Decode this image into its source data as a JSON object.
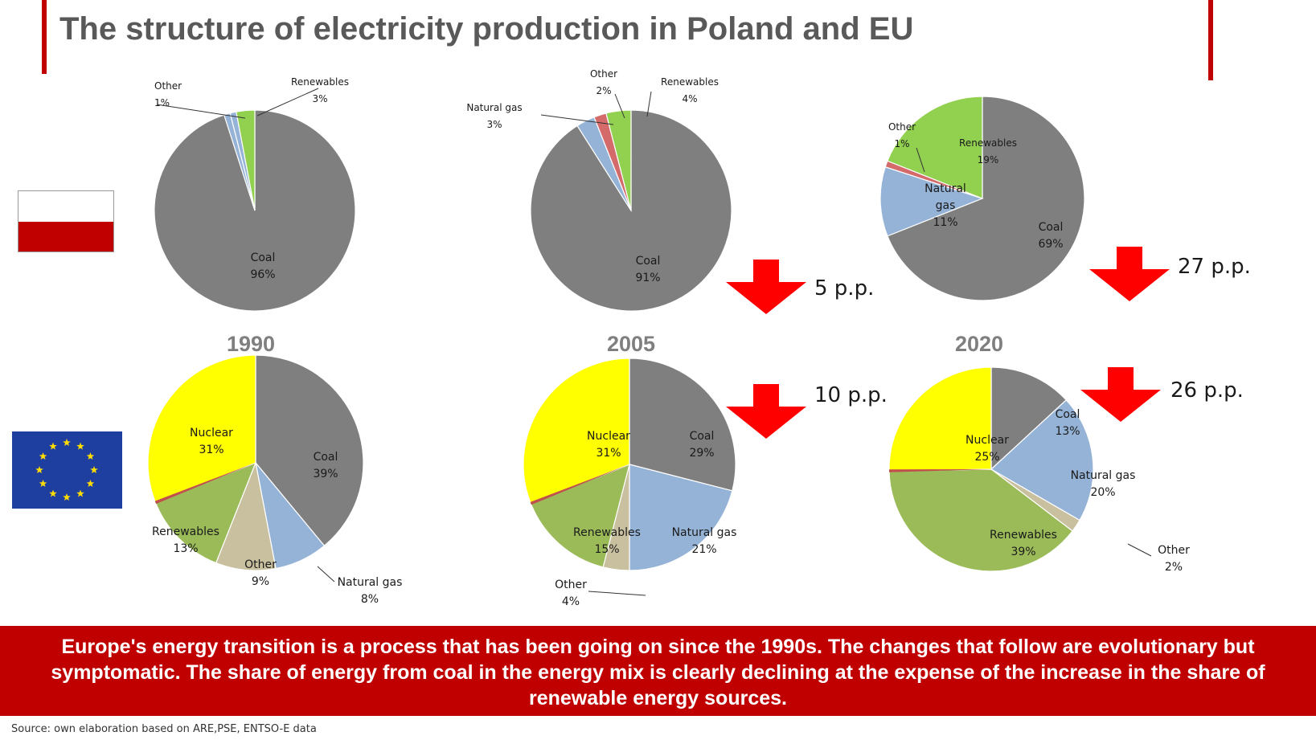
{
  "title": "The structure of electricity production in Poland and EU",
  "banner_text": "Europe's energy transition is a process that has been going on since the 1990s. The changes that follow are evolutionary but symptomatic. The share of energy from coal in the energy mix is clearly declining at the expense of the increase in the share of renewable energy sources.",
  "source": "Source: own elaboration based on ARE,PSE, ENTSO-E data",
  "colors": {
    "coal": "#7f7f7f",
    "natural_gas": "#95b3d7",
    "other_pl": "#d46a6a",
    "other_eu": "#c9c0a0",
    "renewables_pl": "#92d050",
    "renewables_eu": "#9bbb59",
    "nuclear": "#ffff00",
    "small_other": "#c0504d",
    "accent": "#c00000",
    "arrow": "#ff0000"
  },
  "flags": [
    "poland-flag",
    "eu-flag"
  ],
  "chart_data": [
    {
      "type": "pie",
      "region": "Poland",
      "year": "1990",
      "slices": [
        {
          "name": "Coal",
          "value": 96,
          "label": "96%"
        },
        {
          "name": "Natural gas",
          "value": 1,
          "label": ""
        },
        {
          "name": "Other",
          "value": 1,
          "label": "1%"
        },
        {
          "name": "Renewables",
          "value": 3,
          "label": "3%"
        }
      ]
    },
    {
      "type": "pie",
      "region": "Poland",
      "year": "2005",
      "slices": [
        {
          "name": "Coal",
          "value": 91,
          "label": "91%"
        },
        {
          "name": "Natural gas",
          "value": 3,
          "label": "3%"
        },
        {
          "name": "Other",
          "value": 2,
          "label": "2%"
        },
        {
          "name": "Renewables",
          "value": 4,
          "label": "4%"
        }
      ],
      "change": "5 p.p."
    },
    {
      "type": "pie",
      "region": "Poland",
      "year": "2020",
      "slices": [
        {
          "name": "Coal",
          "value": 69,
          "label": "69%"
        },
        {
          "name": "Natural gas",
          "value": 11,
          "label": "11%"
        },
        {
          "name": "Other",
          "value": 1,
          "label": "1%"
        },
        {
          "name": "Renewables",
          "value": 19,
          "label": "19%"
        }
      ],
      "change": "27 p.p."
    },
    {
      "type": "pie",
      "region": "EU",
      "year": "1990",
      "slices": [
        {
          "name": "Coal",
          "value": 39,
          "label": "39%"
        },
        {
          "name": "Natural gas",
          "value": 8,
          "label": "8%"
        },
        {
          "name": "Other",
          "value": 9,
          "label": "9%"
        },
        {
          "name": "Renewables",
          "value": 13,
          "label": "13%"
        },
        {
          "name": "Nuclear",
          "value": 31,
          "label": "31%"
        }
      ]
    },
    {
      "type": "pie",
      "region": "EU",
      "year": "2005",
      "slices": [
        {
          "name": "Coal",
          "value": 29,
          "label": "29%"
        },
        {
          "name": "Natural gas",
          "value": 21,
          "label": "21%"
        },
        {
          "name": "Other",
          "value": 4,
          "label": "4%"
        },
        {
          "name": "Renewables",
          "value": 15,
          "label": "15%"
        },
        {
          "name": "Nuclear",
          "value": 31,
          "label": "31%"
        }
      ],
      "change": "10 p.p."
    },
    {
      "type": "pie",
      "region": "EU",
      "year": "2020",
      "slices": [
        {
          "name": "Coal",
          "value": 13,
          "label": "13%"
        },
        {
          "name": "Natural gas",
          "value": 20,
          "label": "20%"
        },
        {
          "name": "Other",
          "value": 2,
          "label": "2%"
        },
        {
          "name": "Renewables",
          "value": 39,
          "label": "39%"
        },
        {
          "name": "Nuclear",
          "value": 25,
          "label": "25%"
        }
      ],
      "change": "26 p.p."
    }
  ]
}
